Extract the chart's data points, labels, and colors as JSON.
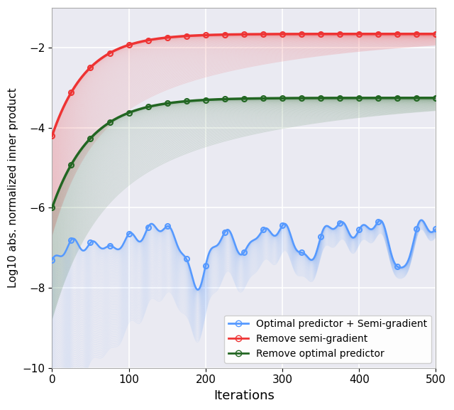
{
  "title": "",
  "xlabel": "Iterations",
  "ylabel": "Log10 abs. normalized inner product",
  "xlim": [
    0,
    500
  ],
  "ylim": [
    -10,
    -1
  ],
  "yticks": [
    -10,
    -8,
    -6,
    -4,
    -2
  ],
  "xticks": [
    0,
    100,
    200,
    300,
    400,
    500
  ],
  "bg_color": "#eaeaf2",
  "grid_color": "white",
  "blue_color": "#5599ff",
  "red_color": "#ee3333",
  "green_color": "#226622",
  "legend_labels": [
    "Optimal predictor + Semi-gradient",
    "Remove semi-gradient",
    "Remove optimal predictor"
  ],
  "n_fans": 80,
  "n_points": 501,
  "seed": 7
}
